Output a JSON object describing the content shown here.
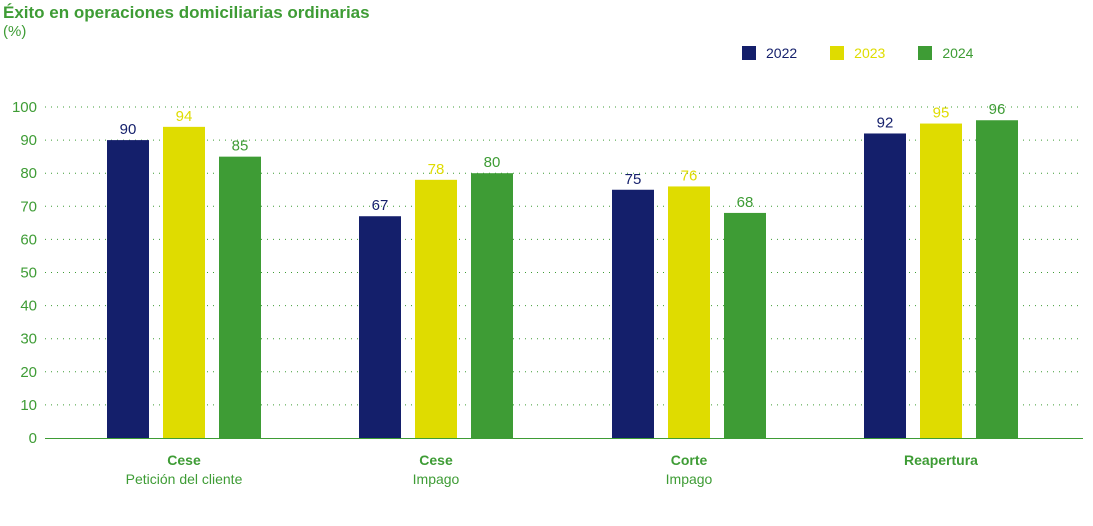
{
  "chart_data": {
    "type": "bar",
    "title": "Éxito en operaciones domiciliarias ordinarias",
    "unit": "(%)",
    "categories": [
      {
        "main": "Cese",
        "sub": "Petición del cliente"
      },
      {
        "main": "Cese",
        "sub": "Impago"
      },
      {
        "main": "Corte",
        "sub": "Impago"
      },
      {
        "main": "Reapertura",
        "sub": ""
      }
    ],
    "series": [
      {
        "name": "2022",
        "color": "#141f6b",
        "values": [
          90,
          67,
          75,
          92
        ]
      },
      {
        "name": "2023",
        "color": "#dfdc00",
        "values": [
          94,
          78,
          76,
          95
        ]
      },
      {
        "name": "2024",
        "color": "#3e9c35",
        "values": [
          85,
          80,
          68,
          96
        ]
      }
    ],
    "ylim": [
      0,
      100
    ],
    "yticks": [
      0,
      10,
      20,
      30,
      40,
      50,
      60,
      70,
      80,
      90,
      100
    ],
    "grid": true,
    "legend_position": "top-right",
    "axis_color": "#3e9c35"
  }
}
